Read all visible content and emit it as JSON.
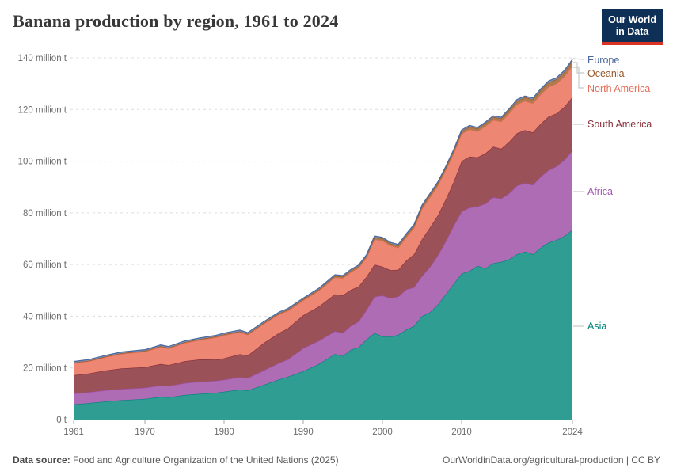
{
  "header": {
    "title": "Banana production by region, 1961 to 2024",
    "logo": {
      "line1": "Our World",
      "line2": "in Data"
    }
  },
  "footer": {
    "source_label": "Data source:",
    "source_text": " Food and Agriculture Organization of the United Nations (2025)",
    "credit": "OurWorldinData.org/agricultural-production | CC BY"
  },
  "colors": {
    "background": "#ffffff",
    "gridline": "#dcdcdc",
    "axis_text": "#6b6b6b",
    "logo_bg": "#0e2f56",
    "logo_red": "#dc3224"
  },
  "chart_data": {
    "type": "area",
    "stacked": true,
    "title": "Banana production by region, 1961 to 2024",
    "xlabel": "",
    "ylabel": "million tonnes",
    "ylim": [
      0,
      140
    ],
    "y_ticks": [
      0,
      20,
      40,
      60,
      80,
      100,
      120,
      140
    ],
    "y_tick_suffix": " million t",
    "y_zero_label": "0 t",
    "x_ticks": [
      1961,
      1970,
      1980,
      1990,
      2000,
      2010,
      2024
    ],
    "xlim": [
      1961,
      2024
    ],
    "grid": true,
    "legend_position": "right",
    "x": [
      1961,
      1963,
      1965,
      1967,
      1970,
      1972,
      1973,
      1975,
      1977,
      1979,
      1980,
      1982,
      1983,
      1985,
      1987,
      1988,
      1990,
      1992,
      1994,
      1995,
      1996,
      1997,
      1998,
      1999,
      2000,
      2001,
      2002,
      2003,
      2004,
      2005,
      2006,
      2007,
      2008,
      2009,
      2010,
      2011,
      2012,
      2013,
      2014,
      2015,
      2016,
      2017,
      2018,
      2019,
      2020,
      2021,
      2022,
      2023,
      2024
    ],
    "series": [
      {
        "name": "Asia",
        "color": "#00847e",
        "fill": "#2f9d91",
        "values": [
          5.9,
          6.4,
          7.0,
          7.5,
          8.0,
          8.8,
          8.6,
          9.5,
          10.0,
          10.4,
          10.8,
          11.6,
          11.3,
          13.4,
          15.6,
          16.5,
          18.7,
          21.5,
          25.4,
          24.6,
          27.0,
          28.0,
          31.0,
          33.5,
          32.2,
          32.0,
          32.8,
          34.8,
          36.2,
          40.0,
          41.5,
          44.5,
          48.5,
          52.5,
          56.5,
          57.5,
          59.5,
          58.5,
          60.5,
          61.0,
          62.0,
          64.0,
          65.0,
          64.0,
          66.5,
          68.5,
          69.5,
          71.0,
          73.5
        ]
      },
      {
        "name": "Africa",
        "color": "#a352b5",
        "fill": "#ad6cb3",
        "values": [
          4.2,
          4.2,
          4.3,
          4.3,
          4.3,
          4.4,
          4.4,
          4.6,
          4.7,
          4.6,
          4.6,
          4.8,
          4.8,
          5.6,
          6.4,
          6.7,
          8.9,
          9.0,
          8.8,
          8.9,
          9.2,
          10.0,
          11.5,
          14.0,
          15.8,
          15.0,
          14.8,
          15.5,
          15.0,
          15.5,
          17.5,
          19.0,
          20.5,
          22.5,
          24.0,
          24.5,
          23.0,
          25.0,
          25.5,
          24.5,
          25.5,
          26.5,
          26.5,
          26.8,
          27.5,
          28.0,
          28.5,
          29.5,
          30.5
        ]
      },
      {
        "name": "South America",
        "color": "#883039",
        "fill": "#9b5158",
        "values": [
          7.1,
          7.3,
          7.7,
          8.0,
          8.0,
          8.3,
          8.1,
          8.5,
          8.6,
          8.2,
          8.3,
          8.9,
          8.7,
          10.6,
          11.6,
          12.0,
          12.8,
          13.3,
          14.3,
          14.6,
          14.0,
          13.5,
          12.8,
          12.5,
          11.2,
          10.8,
          10.4,
          11.2,
          12.8,
          14.3,
          15.3,
          15.5,
          16.2,
          17.0,
          19.5,
          19.8,
          19.0,
          19.5,
          19.6,
          19.3,
          20.0,
          20.3,
          20.5,
          20.3,
          20.5,
          20.8,
          20.5,
          20.6,
          20.8
        ]
      },
      {
        "name": "North America",
        "color": "#e56e5a",
        "fill": "#ee8674",
        "values": [
          4.6,
          4.7,
          5.1,
          5.6,
          6.0,
          6.6,
          6.4,
          7.0,
          7.5,
          8.6,
          8.9,
          8.5,
          8.0,
          7.4,
          7.2,
          6.8,
          5.7,
          6.1,
          6.5,
          6.6,
          6.8,
          7.2,
          7.4,
          9.8,
          10.0,
          9.5,
          8.5,
          9.0,
          10.2,
          11.7,
          11.7,
          11.5,
          11.3,
          11.0,
          10.6,
          10.5,
          10.0,
          10.5,
          10.3,
          10.5,
          11.0,
          11.2,
          11.3,
          11.3,
          11.4,
          11.5,
          11.5,
          11.7,
          12.0
        ]
      },
      {
        "name": "Oceania",
        "color": "#9b5729",
        "fill": "#b07b4c",
        "values": [
          0.25,
          0.26,
          0.28,
          0.3,
          0.35,
          0.36,
          0.36,
          0.37,
          0.38,
          0.39,
          0.4,
          0.4,
          0.4,
          0.42,
          0.44,
          0.45,
          0.5,
          0.55,
          0.6,
          0.62,
          0.65,
          0.7,
          0.7,
          0.8,
          0.85,
          0.85,
          0.85,
          0.9,
          0.9,
          1.0,
          1.0,
          1.0,
          1.0,
          1.0,
          1.0,
          1.05,
          1.1,
          1.15,
          1.2,
          1.25,
          1.3,
          1.35,
          1.4,
          1.5,
          1.6,
          1.7,
          1.75,
          1.8,
          2.0
        ]
      },
      {
        "name": "Europe",
        "color": "#4c6a9c",
        "fill": "#8398c5",
        "values": [
          0.4,
          0.41,
          0.42,
          0.42,
          0.4,
          0.42,
          0.42,
          0.43,
          0.44,
          0.44,
          0.45,
          0.45,
          0.44,
          0.45,
          0.45,
          0.45,
          0.4,
          0.42,
          0.43,
          0.43,
          0.44,
          0.44,
          0.44,
          0.45,
          0.45,
          0.44,
          0.44,
          0.45,
          0.45,
          0.45,
          0.45,
          0.45,
          0.45,
          0.45,
          0.45,
          0.45,
          0.45,
          0.45,
          0.45,
          0.45,
          0.45,
          0.5,
          0.5,
          0.5,
          0.5,
          0.55,
          0.55,
          0.55,
          0.6
        ]
      }
    ]
  }
}
